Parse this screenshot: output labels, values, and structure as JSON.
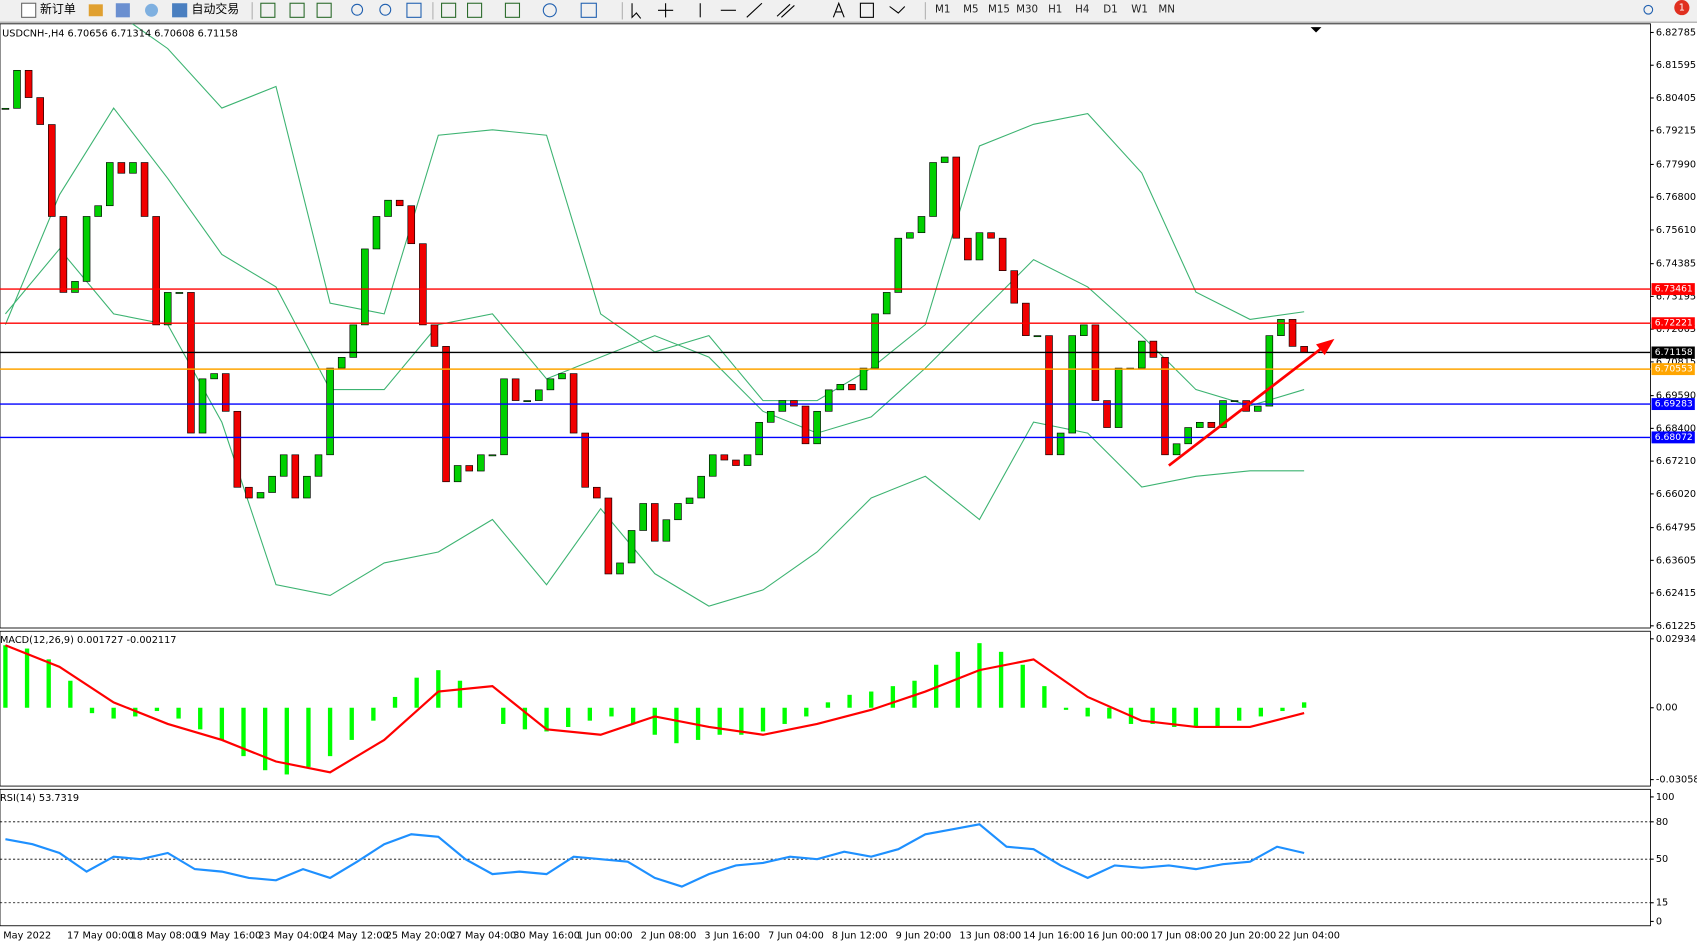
{
  "toolbar": {
    "new_order": "新订单",
    "auto_trading": "自动交易",
    "timeframes": [
      "M1",
      "M5",
      "M15",
      "M30",
      "H1",
      "H4",
      "D1",
      "W1",
      "MN"
    ],
    "alerts": "1"
  },
  "chart_data": [
    {
      "type": "candlestick",
      "title": "USDCNH-,H4 6.70656 6.71314 6.70608 6.71158",
      "color_up": "#00d000",
      "color_down": "#f00000",
      "close": [
        6.8003,
        6.8141,
        6.8042,
        6.7944,
        6.761,
        6.7334,
        6.7374,
        6.761,
        6.7649,
        6.7806,
        6.7767,
        6.7806,
        6.761,
        6.7216,
        6.7334,
        6.7334,
        6.6823,
        6.702,
        6.7039,
        6.6902,
        6.6626,
        6.6587,
        6.6607,
        6.6666,
        6.6744,
        6.6587,
        6.6666,
        6.6744,
        6.7059,
        6.7098,
        6.7216,
        6.7492,
        6.761,
        6.7669,
        6.7649,
        6.7511,
        6.7216,
        6.7138,
        6.6646,
        6.6705,
        6.6685,
        6.6744,
        6.6744,
        6.702,
        6.6941,
        6.6941,
        6.698,
        6.702,
        6.7039,
        6.6823,
        6.6626,
        6.6587,
        6.6311,
        6.6351,
        6.6469,
        6.6567,
        6.643,
        6.6508,
        6.6567,
        6.6587,
        6.6666,
        6.6744,
        6.6725,
        6.6705,
        6.6744,
        6.6862,
        6.6902,
        6.6941,
        6.6921,
        6.6784,
        6.6902,
        6.698,
        6.7,
        6.698,
        6.7059,
        6.7256,
        6.7334,
        6.7531,
        6.7551,
        6.761,
        6.7806,
        6.7826,
        6.7531,
        6.7452,
        6.7551,
        6.7531,
        6.7413,
        6.7295,
        6.7177,
        6.7177,
        6.6744,
        6.6823,
        6.7177,
        6.7216,
        6.6941,
        6.6843,
        6.7059,
        6.7059,
        6.7157,
        6.7098,
        6.6744,
        6.6784,
        6.6843,
        6.6862,
        6.6843,
        6.6941,
        6.6941,
        6.6902,
        6.6921,
        6.7177,
        6.7236,
        6.7138,
        6.71158
      ],
      "bands": [
        {
          "color": "#3cb371",
          "values": [
            6.8377,
            6.8397,
            6.8358,
            6.822,
            6.8004,
            6.8082,
            6.7295,
            6.7256,
            6.7905,
            6.7925,
            6.7905,
            6.7256,
            6.7118,
            6.7177,
            6.6941,
            6.6941,
            6.7059,
            6.7217,
            6.7866,
            6.7945,
            6.7984,
            6.7768,
            6.7335,
            6.7236,
            6.7264
          ]
        },
        {
          "color": "#3cb371",
          "values": [
            6.7217,
            6.7689,
            6.8004,
            6.7748,
            6.7472,
            6.7354,
            6.6981,
            6.6981,
            6.7217,
            6.7256,
            6.702,
            6.7099,
            6.7177,
            6.7099,
            6.6902,
            6.6823,
            6.6882,
            6.7059,
            6.7256,
            6.7453,
            6.7354,
            6.7177,
            6.6981,
            6.6922,
            6.6981
          ]
        },
        {
          "color": "#3cb371",
          "values": [
            6.7256,
            6.7492,
            6.7256,
            6.7217,
            6.6862,
            6.6272,
            6.6233,
            6.6351,
            6.6391,
            6.6509,
            6.6272,
            6.6548,
            6.6312,
            6.6194,
            6.6253,
            6.6391,
            6.6587,
            6.6666,
            6.6509,
            6.6863,
            6.6823,
            6.6627,
            6.6666,
            6.6686,
            6.6686
          ]
        }
      ],
      "levels": [
        {
          "value": 6.73461,
          "color": "#ff0000"
        },
        {
          "value": 6.72221,
          "color": "#ff0000"
        },
        {
          "value": 6.71158,
          "color": "#000000"
        },
        {
          "value": 6.70553,
          "color": "#ffa500"
        },
        {
          "value": 6.69283,
          "color": "#0000ff"
        },
        {
          "value": 6.68072,
          "color": "#0000ff"
        }
      ],
      "ylim": [
        6.61225,
        6.82785
      ],
      "yticks": [
        6.82785,
        6.81595,
        6.80405,
        6.79215,
        {
          "value": 6.7799,
          "label": "6.77990"
        },
        {
          "value": 6.768,
          "label": "6.76800"
        },
        {
          "value": 6.7561,
          "label": "6.75610"
        },
        6.74385,
        6.73195,
        6.72005,
        6.70815,
        {
          "value": 6.6959,
          "label": "6.69590"
        },
        {
          "value": 6.684,
          "label": "6.68400"
        },
        {
          "value": 6.6721,
          "label": "6.67210"
        },
        {
          "value": 6.6602,
          "label": "6.66020"
        },
        6.64795,
        6.63605,
        6.62415,
        6.61225
      ],
      "x_labels": [
        "May 2022",
        "17 May 00:00",
        "18 May 08:00",
        "19 May 16:00",
        "23 May 04:00",
        "24 May 12:00",
        "25 May 20:00",
        "27 May 04:00",
        "30 May 16:00",
        "1 Jun 00:00",
        "2 Jun 08:00",
        "3 Jun 16:00",
        "7 Jun 04:00",
        "8 Jun 12:00",
        "9 Jun 20:00",
        "13 Jun 08:00",
        "14 Jun 16:00",
        "16 Jun 00:00",
        "17 Jun 08:00",
        "20 Jun 20:00",
        "22 Jun 04:00"
      ]
    },
    {
      "type": "macd",
      "title": "MACD(12,26,9) 0.001727 -0.002117",
      "histogram": {
        "color": "#00ff00",
        "values": [
          0.0266,
          0.0252,
          0.0206,
          0.0115,
          -0.0023,
          -0.0046,
          -0.0037,
          -0.0014,
          -0.0046,
          -0.0092,
          -0.0137,
          -0.0206,
          -0.0266,
          -0.0284,
          -0.0252,
          -0.0206,
          -0.0137,
          -0.0055,
          0.0046,
          0.0128,
          0.016,
          0.0115,
          0,
          -0.0069,
          -0.0092,
          -0.0101,
          -0.0082,
          -0.0055,
          -0.0037,
          -0.0069,
          -0.0115,
          -0.0151,
          -0.0137,
          -0.0115,
          -0.0115,
          -0.0101,
          -0.0069,
          -0.0037,
          0.0023,
          0.0055,
          0.0069,
          0.0092,
          0.0115,
          0.0183,
          0.0238,
          0.0275,
          0.0238,
          0.0183,
          0.0092,
          -0.0009,
          -0.0037,
          -0.0046,
          -0.0069,
          -0.0069,
          -0.0082,
          -0.0082,
          -0.0082,
          -0.0055,
          -0.0037,
          -0.0014,
          0.0023
        ]
      },
      "signal": {
        "color": "#ff0000",
        "values": [
          0.0266,
          0.0174,
          0.0023,
          -0.0069,
          -0.0137,
          -0.0229,
          -0.0275,
          -0.0137,
          0.0069,
          0.0092,
          -0.0092,
          -0.0115,
          -0.0037,
          -0.0082,
          -0.0115,
          -0.0069,
          -0.0009,
          0.0069,
          0.016,
          0.0206,
          0.0046,
          -0.0055,
          -0.0082,
          -0.0082,
          -0.0023
        ]
      },
      "ylim": [
        -0.030587,
        0.029341
      ],
      "yticks": [
        0.029341,
        {
          "value": 0,
          "label": "0.00"
        },
        -0.030587
      ]
    },
    {
      "type": "rsi",
      "title": "RSI(14) 53.7319",
      "color": "#1e90ff",
      "values": [
        66,
        62,
        55,
        40,
        52,
        50,
        55,
        42,
        40,
        35,
        33,
        42,
        35,
        48,
        62,
        70,
        68,
        50,
        38,
        40,
        38,
        52,
        50,
        48,
        35,
        28,
        38,
        45,
        47,
        52,
        50,
        56,
        52,
        58,
        70,
        74,
        78,
        60,
        58,
        45,
        35,
        45,
        43,
        45,
        42,
        46,
        48,
        60,
        55
      ],
      "levels": [
        80,
        50,
        15
      ],
      "ylim": [
        0,
        100
      ],
      "yticks": [
        100,
        80,
        50,
        15,
        0
      ]
    }
  ]
}
